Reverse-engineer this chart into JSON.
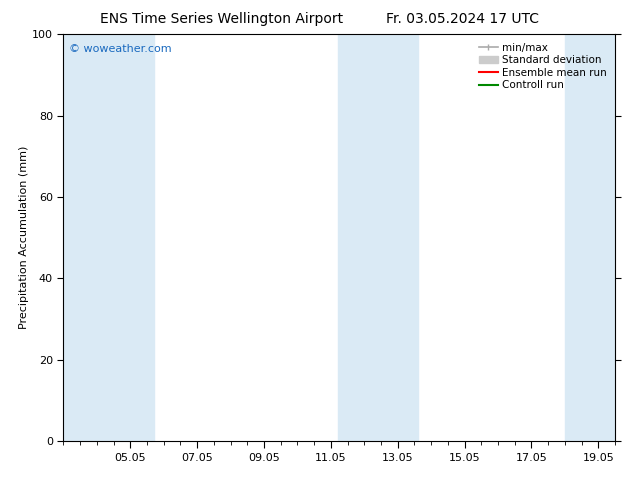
{
  "title_left": "ENS Time Series Wellington Airport",
  "title_right": "Fr. 03.05.2024 17 UTC",
  "ylabel": "Precipitation Accumulation (mm)",
  "ylim": [
    0,
    100
  ],
  "yticks": [
    0,
    20,
    40,
    60,
    80,
    100
  ],
  "xtick_labels": [
    "05.05",
    "07.05",
    "09.05",
    "11.05",
    "13.05",
    "15.05",
    "17.05",
    "19.05"
  ],
  "xtick_positions": [
    2,
    4,
    6,
    8,
    10,
    12,
    14,
    16
  ],
  "xmin": 0,
  "xmax": 16.5,
  "watermark": "© woweather.com",
  "watermark_color": "#1a6abf",
  "shaded_bands": [
    {
      "x_start": 0.0,
      "x_end": 2.7,
      "color": "#daeaf5"
    },
    {
      "x_start": 8.2,
      "x_end": 10.6,
      "color": "#daeaf5"
    },
    {
      "x_start": 15.0,
      "x_end": 16.5,
      "color": "#daeaf5"
    }
  ],
  "legend_items": [
    {
      "label": "min/max",
      "type": "errorbar",
      "color": "#aaaaaa"
    },
    {
      "label": "Standard deviation",
      "type": "fill",
      "color": "#cccccc"
    },
    {
      "label": "Ensemble mean run",
      "type": "line",
      "color": "#ff0000"
    },
    {
      "label": "Controll run",
      "type": "line",
      "color": "#008800"
    }
  ],
  "background_color": "#ffffff",
  "title_fontsize": 10,
  "axis_fontsize": 8,
  "tick_fontsize": 8,
  "legend_fontsize": 7.5
}
